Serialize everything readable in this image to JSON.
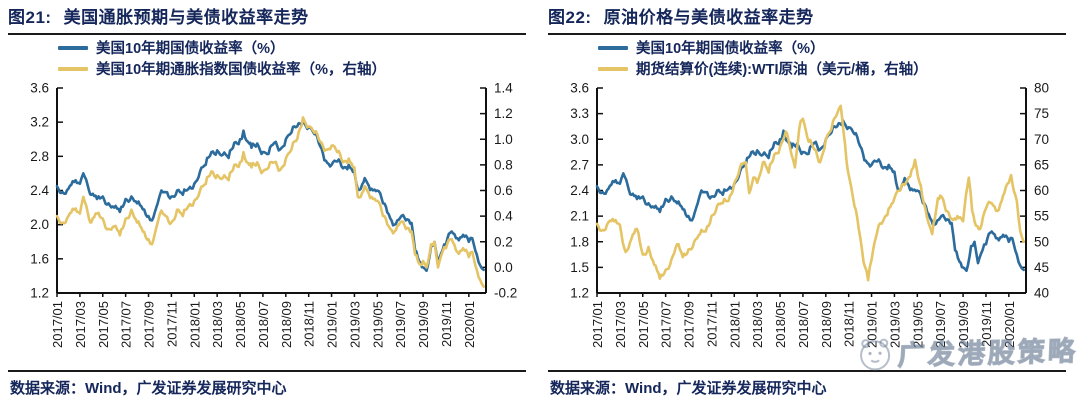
{
  "colors": {
    "accent_navy": "#14265A",
    "axis": "#111111",
    "treasury_blue": "#2C6C9C",
    "gold": "#E4C465",
    "watermark_gray": "#6C7E96"
  },
  "watermark": {
    "text": "广发港股策略",
    "logo": "gf-mascot-logo"
  },
  "chart_data": [
    {
      "type": "line",
      "figure_label": "图21:",
      "title": "美国通胀预期与美债收益率走势",
      "source": "数据来源：Wind，广发证券发展研究中心",
      "grid": false,
      "legend_position": "top-left",
      "x_total_months": 37.5,
      "x_tick_interval_months": 2,
      "x_tick_labels": [
        "2017/01",
        "2017/03",
        "2017/05",
        "2017/07",
        "2017/09",
        "2017/11",
        "2018/01",
        "2018/03",
        "2018/05",
        "2018/07",
        "2018/09",
        "2018/11",
        "2019/01",
        "2019/03",
        "2019/05",
        "2019/07",
        "2019/09",
        "2019/11",
        "2020/01"
      ],
      "left_axis": {
        "lim": [
          1.2,
          3.6
        ],
        "tick_values": [
          1.2,
          1.6,
          2.0,
          2.4,
          2.8,
          3.2,
          3.6
        ],
        "tick_labels": [
          "1.2",
          "1.6",
          "2.0",
          "2.4",
          "2.8",
          "3.2",
          "3.6"
        ]
      },
      "right_axis": {
        "lim": [
          -0.2,
          1.4
        ],
        "tick_values": [
          -0.2,
          0.0,
          0.2,
          0.4,
          0.6,
          0.8,
          1.0,
          1.2,
          1.4
        ],
        "tick_labels": [
          "-0.2",
          "0.0",
          "0.2",
          "0.4",
          "0.6",
          "0.8",
          "1.0",
          "1.2",
          "1.4"
        ]
      },
      "series": [
        {
          "key": "us10y",
          "name": "美国10年期国债收益率（%）",
          "color": "#2C6C9C",
          "axis": "left",
          "x": [
            0,
            0.5,
            1,
            1.5,
            2,
            2.3,
            2.8,
            3,
            3.5,
            4,
            4.5,
            5,
            5.5,
            6,
            6.5,
            7,
            7.5,
            8,
            8.3,
            8.8,
            9,
            9.5,
            10,
            10.5,
            11,
            11.5,
            12,
            12.5,
            13,
            13.5,
            14,
            14.5,
            15,
            15.5,
            16,
            16.3,
            16.8,
            17,
            17.5,
            18,
            18.5,
            19,
            19.5,
            20,
            20.5,
            21,
            21.5,
            22,
            22.5,
            23,
            23.5,
            24,
            24.5,
            25,
            25.5,
            26,
            26.3,
            26.8,
            27,
            27.5,
            28,
            28.5,
            29,
            29.5,
            30,
            30.5,
            31,
            31.3,
            31.8,
            32,
            32.3,
            32.7,
            33,
            33.3,
            33.7,
            34,
            34.5,
            35,
            35.5,
            36,
            36.3,
            36.7,
            37,
            37.3
          ],
          "y": [
            2.45,
            2.38,
            2.42,
            2.5,
            2.48,
            2.6,
            2.4,
            2.35,
            2.3,
            2.33,
            2.25,
            2.2,
            2.15,
            2.3,
            2.33,
            2.25,
            2.18,
            2.1,
            2.05,
            2.25,
            2.35,
            2.38,
            2.33,
            2.4,
            2.35,
            2.42,
            2.48,
            2.62,
            2.7,
            2.85,
            2.87,
            2.82,
            2.78,
            2.96,
            3.0,
            3.1,
            2.95,
            2.9,
            2.95,
            2.85,
            2.83,
            2.96,
            2.88,
            3.0,
            3.08,
            3.15,
            3.22,
            3.14,
            3.06,
            2.92,
            2.75,
            2.7,
            2.74,
            2.66,
            2.7,
            2.62,
            2.41,
            2.5,
            2.52,
            2.42,
            2.4,
            2.25,
            2.12,
            2.0,
            2.08,
            2.05,
            2.02,
            1.7,
            1.55,
            1.5,
            1.46,
            1.75,
            1.8,
            1.55,
            1.7,
            1.77,
            1.92,
            1.84,
            1.88,
            1.8,
            1.84,
            1.65,
            1.52,
            1.47
          ]
        },
        {
          "key": "tips10y",
          "name": "美国10年期通胀指数国债收益率（%，右轴）",
          "color": "#E4C465",
          "axis": "right",
          "x": [
            0,
            0.5,
            1,
            1.5,
            2,
            2.3,
            2.8,
            3,
            3.5,
            4,
            4.5,
            5,
            5.5,
            6,
            6.5,
            7,
            7.5,
            8,
            8.3,
            8.8,
            9,
            9.5,
            10,
            10.5,
            11,
            11.5,
            12,
            12.5,
            13,
            13.5,
            14,
            14.5,
            15,
            15.5,
            16,
            16.3,
            16.8,
            17,
            17.5,
            18,
            18.5,
            19,
            19.5,
            20,
            20.5,
            21,
            21.5,
            22,
            22.5,
            23,
            23.5,
            24,
            24.5,
            25,
            25.5,
            26,
            26.3,
            26.8,
            27,
            27.5,
            28,
            28.5,
            29,
            29.5,
            30,
            30.5,
            31,
            31.3,
            31.8,
            32,
            32.3,
            32.7,
            33,
            33.3,
            33.7,
            34,
            34.5,
            35,
            35.5,
            36,
            36.3,
            36.7,
            37,
            37.3
          ],
          "y": [
            0.4,
            0.35,
            0.4,
            0.45,
            0.42,
            0.55,
            0.38,
            0.35,
            0.42,
            0.38,
            0.3,
            0.32,
            0.25,
            0.38,
            0.45,
            0.35,
            0.28,
            0.22,
            0.18,
            0.35,
            0.42,
            0.4,
            0.35,
            0.45,
            0.4,
            0.48,
            0.52,
            0.6,
            0.65,
            0.75,
            0.72,
            0.7,
            0.68,
            0.8,
            0.82,
            0.9,
            0.8,
            0.78,
            0.82,
            0.75,
            0.78,
            0.82,
            0.76,
            0.85,
            0.92,
            1.0,
            1.17,
            1.1,
            1.05,
            0.98,
            0.92,
            0.95,
            0.9,
            0.82,
            0.85,
            0.78,
            0.55,
            0.6,
            0.62,
            0.55,
            0.52,
            0.4,
            0.32,
            0.28,
            0.35,
            0.3,
            0.28,
            0.1,
            0.02,
            0.05,
            0.0,
            0.18,
            0.2,
            0.0,
            0.12,
            0.15,
            0.22,
            0.12,
            0.15,
            0.08,
            0.12,
            -0.02,
            -0.1,
            -0.15
          ]
        }
      ]
    },
    {
      "type": "line",
      "figure_label": "图22:",
      "title": "原油价格与美债收益率走势",
      "source": "数据来源：Wind，广发证券发展研究中心",
      "grid": false,
      "legend_position": "top-left",
      "x_total_months": 37.5,
      "x_tick_interval_months": 2,
      "x_tick_labels": [
        "2017/01",
        "2017/03",
        "2017/05",
        "2017/07",
        "2017/09",
        "2017/11",
        "2018/01",
        "2018/03",
        "2018/05",
        "2018/07",
        "2018/09",
        "2018/11",
        "2019/01",
        "2019/03",
        "2019/05",
        "2019/07",
        "2019/09",
        "2019/11",
        "2020/01"
      ],
      "left_axis": {
        "lim": [
          1.2,
          3.6
        ],
        "tick_values": [
          1.2,
          1.5,
          1.8,
          2.1,
          2.4,
          2.7,
          3.0,
          3.3,
          3.6
        ],
        "tick_labels": [
          "1.2",
          "1.5",
          "1.8",
          "2.1",
          "2.4",
          "2.7",
          "3.0",
          "3.3",
          "3.6"
        ]
      },
      "right_axis": {
        "lim": [
          40,
          80
        ],
        "tick_values": [
          40,
          45,
          50,
          55,
          60,
          65,
          70,
          75,
          80
        ],
        "tick_labels": [
          "40",
          "45",
          "50",
          "55",
          "60",
          "65",
          "70",
          "75",
          "80"
        ]
      },
      "series": [
        {
          "key": "us10y",
          "name": "美国10年期国债收益率（%）",
          "color": "#2C6C9C",
          "axis": "left",
          "x": [
            0,
            0.5,
            1,
            1.5,
            2,
            2.3,
            2.8,
            3,
            3.5,
            4,
            4.5,
            5,
            5.5,
            6,
            6.5,
            7,
            7.5,
            8,
            8.3,
            8.8,
            9,
            9.5,
            10,
            10.5,
            11,
            11.5,
            12,
            12.5,
            13,
            13.5,
            14,
            14.5,
            15,
            15.5,
            16,
            16.3,
            16.8,
            17,
            17.5,
            18,
            18.5,
            19,
            19.5,
            20,
            20.5,
            21,
            21.5,
            22,
            22.5,
            23,
            23.5,
            24,
            24.5,
            25,
            25.5,
            26,
            26.3,
            26.8,
            27,
            27.5,
            28,
            28.5,
            29,
            29.5,
            30,
            30.5,
            31,
            31.3,
            31.8,
            32,
            32.3,
            32.7,
            33,
            33.3,
            33.7,
            34,
            34.5,
            35,
            35.5,
            36,
            36.3,
            36.7,
            37,
            37.3
          ],
          "y": [
            2.45,
            2.38,
            2.42,
            2.5,
            2.48,
            2.6,
            2.4,
            2.35,
            2.3,
            2.33,
            2.25,
            2.2,
            2.15,
            2.3,
            2.33,
            2.25,
            2.18,
            2.1,
            2.05,
            2.25,
            2.35,
            2.38,
            2.33,
            2.4,
            2.35,
            2.42,
            2.48,
            2.62,
            2.7,
            2.85,
            2.87,
            2.82,
            2.78,
            2.96,
            3.0,
            3.1,
            2.95,
            2.9,
            2.95,
            2.85,
            2.83,
            2.96,
            2.88,
            3.0,
            3.08,
            3.15,
            3.22,
            3.14,
            3.06,
            2.92,
            2.75,
            2.7,
            2.74,
            2.66,
            2.7,
            2.62,
            2.41,
            2.5,
            2.52,
            2.42,
            2.4,
            2.25,
            2.12,
            2.0,
            2.08,
            2.05,
            2.02,
            1.7,
            1.55,
            1.5,
            1.46,
            1.75,
            1.8,
            1.55,
            1.7,
            1.77,
            1.92,
            1.84,
            1.88,
            1.8,
            1.84,
            1.65,
            1.52,
            1.47
          ]
        },
        {
          "key": "wti",
          "name": "期货结算价(连续):WTI原油（美元/桶，右轴）",
          "color": "#E4C465",
          "axis": "right",
          "x": [
            0,
            0.5,
            1,
            1.5,
            2,
            2.5,
            3,
            3.5,
            4,
            4.5,
            5,
            5.5,
            6,
            6.5,
            7,
            7.5,
            8,
            8.5,
            9,
            9.5,
            10,
            10.5,
            11,
            11.5,
            12,
            12.5,
            13,
            13.3,
            13.8,
            14,
            14.5,
            15,
            15.5,
            16,
            16.5,
            17,
            17.3,
            17.8,
            18,
            18.5,
            19,
            19.5,
            20,
            20.5,
            21,
            21.3,
            21.8,
            22,
            22.5,
            23,
            23.3,
            23.7,
            24,
            24.5,
            25,
            25.5,
            26,
            26.5,
            27,
            27.5,
            27.8,
            28.3,
            28.7,
            29,
            29.3,
            29.8,
            30,
            30.5,
            31,
            31.5,
            32,
            32.5,
            32.8,
            33,
            33.5,
            34,
            34.5,
            35,
            35.5,
            36,
            36.2,
            36.7,
            37,
            37.3
          ],
          "y": [
            53.5,
            52.3,
            53.8,
            54.0,
            53.3,
            48.0,
            50.5,
            52.5,
            47.5,
            49.0,
            45.5,
            42.8,
            44.5,
            46.5,
            49.5,
            47.0,
            48.5,
            50.0,
            51.5,
            52.0,
            55.0,
            57.0,
            57.5,
            58.0,
            61.5,
            64.5,
            65.5,
            59.5,
            62.5,
            61.5,
            65.5,
            63.5,
            67.0,
            68.5,
            71.5,
            67.0,
            64.5,
            73.5,
            74.0,
            69.5,
            68.0,
            65.5,
            70.0,
            72.0,
            75.0,
            76.5,
            66.0,
            63.0,
            57.0,
            51.0,
            46.0,
            42.5,
            46.5,
            52.0,
            54.0,
            56.5,
            58.5,
            60.0,
            61.5,
            64.0,
            66.0,
            61.0,
            56.5,
            53.5,
            51.5,
            58.5,
            59.0,
            56.0,
            54.5,
            55.0,
            54.0,
            62.5,
            56.0,
            54.0,
            52.5,
            56.5,
            57.5,
            56.0,
            59.0,
            61.5,
            63.0,
            58.0,
            52.0,
            50.0
          ]
        }
      ]
    }
  ]
}
